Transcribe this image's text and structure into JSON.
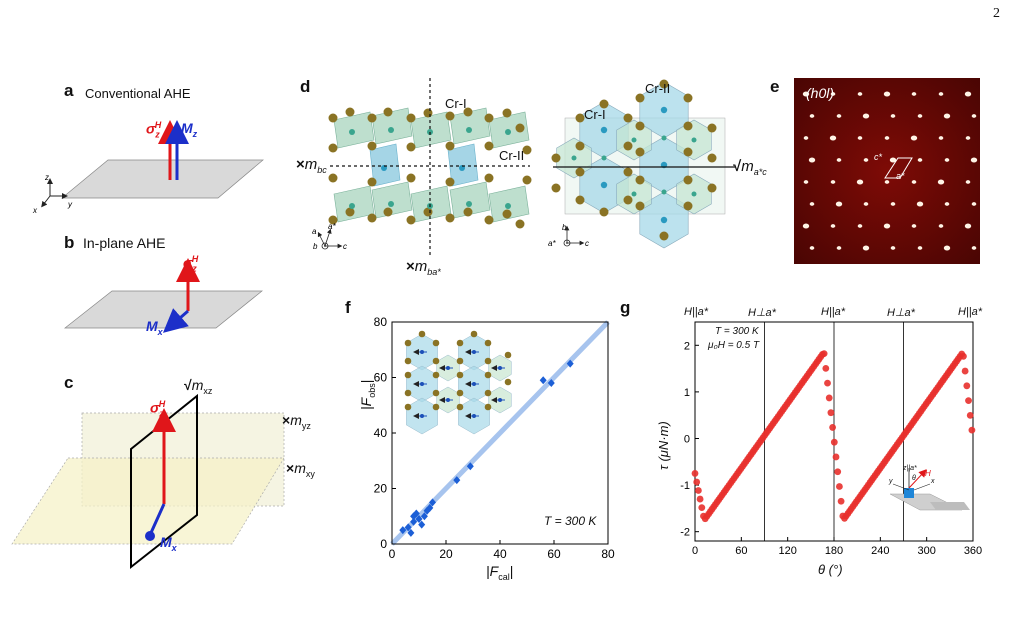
{
  "page_number": "2",
  "panel_a": {
    "letter": "a",
    "title": "Conventional AHE",
    "sigma": "σ",
    "sigma_sub": "z",
    "sigma_sup": "H",
    "m": "M",
    "m_sub": "z",
    "ax_z": "z",
    "ax_x": "x",
    "ax_y": "y"
  },
  "panel_b": {
    "letter": "b",
    "title": "In-plane AHE",
    "sigma": "σ",
    "sigma_sub": "z",
    "sigma_sup": "H",
    "m": "M",
    "m_sub": "x"
  },
  "panel_c": {
    "letter": "c",
    "sigma": "σ",
    "sigma_sub": "z",
    "sigma_sup": "H",
    "m": "M",
    "m_sub": "x",
    "mxz_mark": "√",
    "mxz": "m",
    "mxz_sub": "xz",
    "myz_mark": "×",
    "myz": "m",
    "myz_sub": "yz",
    "mxy_mark": "×",
    "mxy": "m",
    "mxy_sub": "xy"
  },
  "panel_d": {
    "letter": "d",
    "cr1": "Cr-I",
    "cr2": "Cr-II",
    "mbc_mark": "×",
    "mbc": "m",
    "mbc_sub": "bc",
    "mba_mark": "×",
    "mba": "m",
    "mba_sub": "ba*",
    "mac_mark": "√",
    "mac": "m",
    "mac_sub": "a*c",
    "ax1_a": "a",
    "ax1_astar": "a*",
    "ax1_b": "b",
    "ax1_c": "c",
    "ax2_b": "b",
    "ax2_astar": "a*",
    "ax2_c": "c"
  },
  "panel_e": {
    "letter": "e",
    "label": "(h0l)",
    "c_star": "c*",
    "a_star": "a*"
  },
  "panel_f": {
    "letter": "f",
    "temp": "T = 300 K",
    "xlabel": "|F",
    "xlabel_sub": "cal",
    "ylabel": "|F",
    "ylabel_sub": "obs"
  },
  "panel_g": {
    "letter": "g",
    "temp": "T = 300 K",
    "field": "μ₀H = 0.5 T",
    "xlabel": "θ (°)",
    "ylabel": "τ (μN·m)",
    "top_labels": [
      "H||a*",
      "H⊥a*",
      "H||a*",
      "H⊥a*",
      "H||a*"
    ],
    "inset_z": "z||a*",
    "inset_theta": "θ",
    "inset_H": "H",
    "inset_y": "y",
    "inset_x": "x"
  },
  "chart_data": [
    {
      "type": "scatter",
      "panel": "f",
      "title": "",
      "xlabel": "|Fcal|",
      "ylabel": "|Fobs|",
      "xlim": [
        0,
        80
      ],
      "ylim": [
        0,
        80
      ],
      "xticks": [
        0,
        20,
        40,
        60,
        80
      ],
      "yticks": [
        0,
        20,
        40,
        60,
        80
      ],
      "annotation": "T = 300 K",
      "fit_line": {
        "x": [
          0,
          80
        ],
        "y": [
          0,
          80
        ]
      },
      "series": [
        {
          "x": [
            4,
            6,
            7,
            8,
            8,
            9,
            10,
            11,
            12,
            13,
            14,
            15,
            24,
            29,
            56,
            59,
            66
          ],
          "y": [
            5,
            6,
            4,
            8,
            10,
            11,
            9,
            7,
            10,
            12,
            13,
            15,
            23,
            28,
            59,
            58,
            65
          ]
        }
      ]
    },
    {
      "type": "scatter",
      "panel": "g",
      "title": "",
      "xlabel": "θ (°)",
      "ylabel": "τ (μN·m)",
      "xlim": [
        0,
        360
      ],
      "ylim": [
        -2.2,
        2.5
      ],
      "xticks": [
        0,
        60,
        120,
        180,
        240,
        300,
        360
      ],
      "yticks": [
        -2,
        -1,
        0,
        1,
        2
      ],
      "vlines": [
        90,
        180,
        270
      ],
      "annotations": [
        "T = 300 K",
        "μ₀H = 0.5 T"
      ]
    }
  ]
}
